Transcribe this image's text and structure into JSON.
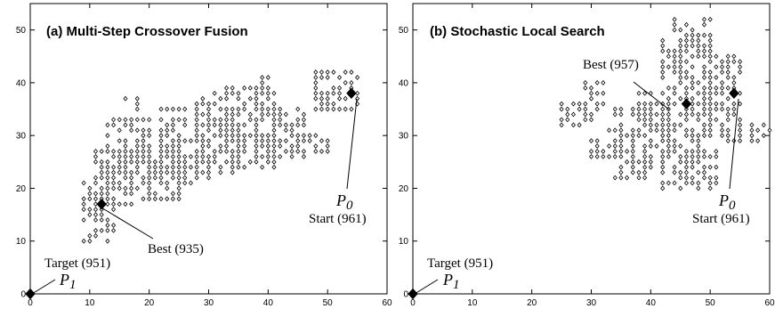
{
  "chart_data": [
    {
      "type": "scatter",
      "title": "(a) Multi-Step Crossover Fusion",
      "xlabel": "",
      "ylabel": "",
      "xlim": [
        0,
        60
      ],
      "ylim": [
        0,
        55
      ],
      "xticks": [
        0,
        10,
        20,
        30,
        40,
        50,
        60
      ],
      "yticks": [
        0,
        10,
        20,
        30,
        40,
        50
      ],
      "grid": false,
      "clusters": [
        {
          "x": [
            9,
            14
          ],
          "y": [
            10,
            21
          ]
        },
        {
          "x": [
            11,
            17
          ],
          "y": [
            17,
            27
          ]
        },
        {
          "x": [
            13,
            20
          ],
          "y": [
            20,
            33
          ]
        },
        {
          "x": [
            18,
            25
          ],
          "y": [
            18,
            30
          ]
        },
        {
          "x": [
            22,
            30
          ],
          "y": [
            21,
            35
          ]
        },
        {
          "x": [
            28,
            35
          ],
          "y": [
            23,
            38
          ]
        },
        {
          "x": [
            33,
            42
          ],
          "y": [
            24,
            39
          ]
        },
        {
          "x": [
            38,
            46
          ],
          "y": [
            26,
            35
          ]
        },
        {
          "x": [
            44,
            50
          ],
          "y": [
            27,
            30
          ]
        },
        {
          "x": [
            48,
            55
          ],
          "y": [
            35,
            42
          ]
        },
        {
          "x": [
            16,
            18
          ],
          "y": [
            33,
            37
          ]
        },
        {
          "x": [
            38,
            40
          ],
          "y": [
            38,
            41
          ]
        }
      ],
      "markers": [
        {
          "x": 0,
          "y": 0,
          "label": "Target (951)",
          "name": "P1"
        },
        {
          "x": 12,
          "y": 17,
          "label": "Best (935)",
          "name": ""
        },
        {
          "x": 54,
          "y": 38,
          "label": "Start (961)",
          "name": "P0"
        }
      ]
    },
    {
      "type": "scatter",
      "title": "(b) Stochastic Local Search",
      "xlabel": "",
      "ylabel": "",
      "xlim": [
        0,
        60
      ],
      "ylim": [
        0,
        55
      ],
      "xticks": [
        0,
        10,
        20,
        30,
        40,
        50,
        60
      ],
      "yticks": [
        0,
        10,
        20,
        30,
        40,
        50
      ],
      "grid": false,
      "clusters": [
        {
          "x": [
            25,
            30
          ],
          "y": [
            32,
            36
          ]
        },
        {
          "x": [
            29,
            32
          ],
          "y": [
            35,
            40
          ]
        },
        {
          "x": [
            30,
            35
          ],
          "y": [
            26,
            31
          ]
        },
        {
          "x": [
            34,
            40
          ],
          "y": [
            22,
            35
          ]
        },
        {
          "x": [
            37,
            44
          ],
          "y": [
            27,
            38
          ]
        },
        {
          "x": [
            42,
            50
          ],
          "y": [
            20,
            48
          ]
        },
        {
          "x": [
            44,
            50
          ],
          "y": [
            44,
            52
          ]
        },
        {
          "x": [
            50,
            55
          ],
          "y": [
            30,
            45
          ]
        },
        {
          "x": [
            52,
            60
          ],
          "y": [
            29,
            32
          ]
        },
        {
          "x": [
            45,
            51
          ],
          "y": [
            21,
            27
          ]
        }
      ],
      "markers": [
        {
          "x": 0,
          "y": 0,
          "label": "Target (951)",
          "name": "P1"
        },
        {
          "x": 46,
          "y": 36,
          "label": "Best (957)",
          "name": ""
        },
        {
          "x": 54,
          "y": 38,
          "label": "Start (961)",
          "name": "P0"
        }
      ]
    }
  ]
}
